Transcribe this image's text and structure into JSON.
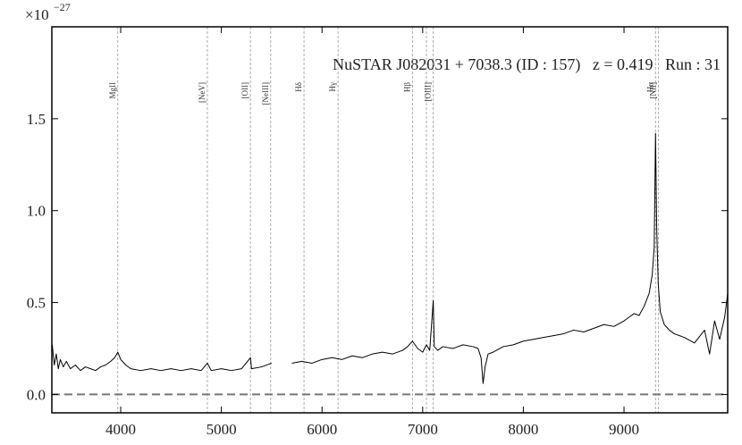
{
  "chart_data": {
    "type": "line",
    "title": "NuSTAR J082031 + 7038.3 (ID : 157)   z = 0.419   Run : 31",
    "offset_label": {
      "base": "×10",
      "exponent": "−27"
    },
    "xlim": [
      3316,
      10030
    ],
    "ylim": [
      -0.1,
      2.0
    ],
    "xticks": [
      4000,
      5000,
      6000,
      7000,
      8000,
      9000
    ],
    "yticks": [
      {
        "value": 0,
        "label": "0.0"
      },
      0.5,
      {
        "value": 1,
        "label": "1.0"
      },
      1.5
    ],
    "hline": 0,
    "lines": [
      {
        "label": "MgII",
        "x": 3971
      },
      {
        "label": "[NeV]",
        "x": 4861
      },
      {
        "label": "[OII]",
        "x": 5289
      },
      {
        "label": "[NeIII]",
        "x": 5490
      },
      {
        "label": "Hδ",
        "x": 5821
      },
      {
        "label": "Hγ",
        "x": 6159
      },
      {
        "label": "Hβ",
        "x": 6898
      },
      {
        "label": null,
        "x": 7037
      },
      {
        "label": "[OIII]",
        "x": 7105
      },
      {
        "label": "Hα",
        "x": 9313
      },
      {
        "label": "[NII]",
        "x": 9343
      }
    ],
    "series": [
      {
        "color": "#000000",
        "x": [
          3320,
          3340,
          3360,
          3380,
          3400,
          3430,
          3460,
          3500,
          3550,
          3600,
          3650,
          3700,
          3750,
          3800,
          3850,
          3900,
          3940,
          3971,
          4000,
          4050,
          4100,
          4200,
          4300,
          4400,
          4500,
          4600,
          4700,
          4800,
          4861,
          4900,
          5000,
          5100,
          5200,
          5289,
          5300,
          5400,
          5500,
          5600,
          5700,
          5800,
          5900,
          6000,
          6100,
          6200,
          6300,
          6400,
          6500,
          6600,
          6700,
          6800,
          6850,
          6898,
          6950,
          7000,
          7037,
          7070,
          7105,
          7115,
          7150,
          7200,
          7300,
          7400,
          7500,
          7550,
          7580,
          7600,
          7620,
          7650,
          7700,
          7800,
          7900,
          8000,
          8100,
          8200,
          8300,
          8400,
          8500,
          8600,
          8700,
          8800,
          8900,
          9000,
          9050,
          9100,
          9150,
          9200,
          9250,
          9280,
          9300,
          9313,
          9325,
          9340,
          9360,
          9400,
          9450,
          9500,
          9600,
          9700,
          9800,
          9850,
          9900,
          9950,
          10000,
          10030
        ],
        "values": [
          0.27,
          0.16,
          0.22,
          0.14,
          0.19,
          0.15,
          0.18,
          0.14,
          0.16,
          0.13,
          0.15,
          0.14,
          0.13,
          0.15,
          0.16,
          0.18,
          0.2,
          0.23,
          0.19,
          0.16,
          0.14,
          0.13,
          0.14,
          0.13,
          0.14,
          0.13,
          0.14,
          0.13,
          0.17,
          0.13,
          0.14,
          0.13,
          0.14,
          0.2,
          0.14,
          0.15,
          0.17,
          null,
          0.17,
          0.18,
          0.17,
          0.19,
          0.2,
          0.19,
          0.21,
          0.2,
          0.22,
          0.23,
          0.22,
          0.24,
          0.26,
          0.29,
          0.25,
          0.23,
          0.27,
          0.24,
          0.51,
          0.26,
          0.24,
          0.26,
          0.25,
          0.27,
          0.26,
          0.25,
          0.2,
          0.06,
          0.15,
          0.22,
          0.23,
          0.26,
          0.27,
          0.29,
          0.3,
          0.31,
          0.32,
          0.33,
          0.35,
          0.34,
          0.36,
          0.38,
          0.37,
          0.4,
          0.42,
          0.44,
          0.43,
          0.48,
          0.55,
          0.65,
          0.8,
          1.42,
          0.9,
          0.6,
          0.45,
          0.38,
          0.35,
          0.33,
          0.31,
          0.28,
          0.35,
          0.22,
          0.4,
          0.3,
          0.42,
          0.55
        ]
      }
    ]
  }
}
